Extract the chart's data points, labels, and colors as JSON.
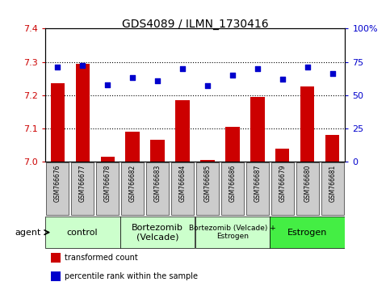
{
  "title": "GDS4089 / ILMN_1730416",
  "samples": [
    "GSM766676",
    "GSM766677",
    "GSM766678",
    "GSM766682",
    "GSM766683",
    "GSM766684",
    "GSM766685",
    "GSM766686",
    "GSM766687",
    "GSM766679",
    "GSM766680",
    "GSM766681"
  ],
  "red_values": [
    7.235,
    7.295,
    7.015,
    7.09,
    7.065,
    7.185,
    7.005,
    7.105,
    7.195,
    7.04,
    7.225,
    7.08
  ],
  "blue_values": [
    71,
    72,
    58,
    63,
    61,
    70,
    57,
    65,
    70,
    62,
    71,
    66
  ],
  "ylim_left": [
    7.0,
    7.4
  ],
  "ylim_right": [
    0,
    100
  ],
  "yticks_left": [
    7.0,
    7.1,
    7.2,
    7.3,
    7.4
  ],
  "yticks_right": [
    0,
    25,
    50,
    75,
    100
  ],
  "grid_dotted_at": [
    7.1,
    7.2,
    7.3
  ],
  "groups": [
    {
      "label": "control",
      "start": 0,
      "end": 3,
      "color": "#ccffcc",
      "fontsize": 8
    },
    {
      "label": "Bortezomib\n(Velcade)",
      "start": 3,
      "end": 6,
      "color": "#ccffcc",
      "fontsize": 8
    },
    {
      "label": "Bortezomib (Velcade) +\nEstrogen",
      "start": 6,
      "end": 9,
      "color": "#ccffcc",
      "fontsize": 6.5
    },
    {
      "label": "Estrogen",
      "start": 9,
      "end": 12,
      "color": "#44ee44",
      "fontsize": 8
    }
  ],
  "bar_color": "#cc0000",
  "dot_color": "#0000cc",
  "grid_color": "#000000",
  "bg_color": "#ffffff",
  "sample_box_color": "#cccccc",
  "left_tick_color": "#cc0000",
  "right_tick_color": "#0000cc",
  "legend_red": "transformed count",
  "legend_blue": "percentile rank within the sample",
  "agent_label": "agent"
}
